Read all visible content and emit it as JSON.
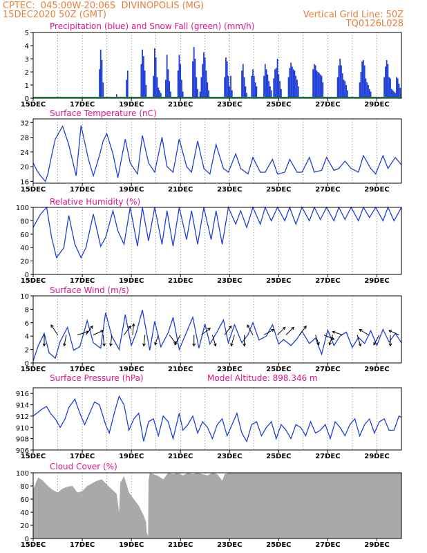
{
  "header": {
    "line1_left": "CPTEC:  045:00W-20:06S  DIVINOPOLIS (MG)",
    "line2_left": "15DEC2020 50Z (GMT)",
    "line2_right": "Vertical Grid Line: 50Z",
    "line3_right": "TQ0126L028"
  },
  "colors": {
    "header": "#e8803a",
    "title": "#e0148c",
    "series": "#1f3fd6",
    "snow": "#18a050",
    "cloud": "#a9a9a9"
  },
  "chart_data": [
    {
      "type": "bar",
      "title": "Precipitation (blue) and Snow Fall (green) (mm/h)",
      "x_ticks": [
        "15DEC",
        "17DEC",
        "19DEC",
        "21DEC",
        "23DEC",
        "25DEC",
        "27DEC",
        "29DEC"
      ],
      "xlim_days": [
        15,
        30
      ],
      "ylim": [
        0,
        5
      ],
      "y_ticks": [
        0,
        1,
        2,
        3,
        4,
        5
      ],
      "series": [
        {
          "name": "Precipitation",
          "x_day": [
            17.7,
            17.75,
            17.8,
            17.85,
            18.4,
            18.8,
            18.85,
            19.4,
            19.45,
            19.5,
            19.55,
            19.6,
            19.9,
            19.95,
            20.0,
            20.05,
            20.1,
            20.15,
            20.2,
            20.4,
            20.45,
            20.5,
            20.55,
            20.6,
            20.9,
            20.95,
            21.0,
            21.05,
            21.1,
            21.5,
            21.55,
            21.6,
            21.65,
            21.7,
            21.8,
            21.85,
            21.9,
            21.95,
            22.0,
            22.05,
            22.1,
            22.15,
            22.8,
            22.85,
            22.9,
            22.95,
            23.0,
            23.05,
            23.1,
            23.5,
            23.55,
            23.6,
            23.65,
            23.7,
            23.9,
            23.95,
            24.0,
            24.05,
            24.1,
            24.4,
            24.45,
            24.5,
            24.55,
            24.6,
            24.65,
            24.7,
            24.8,
            24.85,
            24.9,
            24.95,
            25.0,
            25.05,
            25.1,
            25.4,
            25.45,
            25.5,
            25.55,
            25.6,
            25.65,
            25.7,
            25.75,
            25.8,
            26.4,
            26.45,
            26.5,
            26.55,
            26.6,
            26.65,
            26.7,
            26.75,
            26.8,
            27.4,
            27.45,
            27.5,
            27.55,
            27.6,
            27.65,
            27.7,
            27.75,
            27.8,
            28.3,
            28.35,
            28.4,
            28.45,
            28.5,
            28.55,
            28.6,
            28.65,
            28.7,
            28.75,
            29.3,
            29.35,
            29.4,
            29.45,
            29.5,
            29.55,
            29.6,
            29.65,
            29.7,
            29.75,
            29.8,
            29.85,
            29.9,
            29.95
          ],
          "values": [
            2.2,
            3.7,
            2.9,
            1.2,
            0.3,
            1.4,
            2.1,
            2.6,
            3.7,
            3.2,
            2.1,
            1.0,
            1.7,
            3.8,
            3.1,
            1.6,
            0.8,
            0.6,
            0.4,
            1.4,
            3.3,
            2.2,
            1.3,
            0.5,
            2.1,
            3.3,
            2.6,
            1.4,
            0.5,
            2.8,
            3.9,
            3.0,
            1.6,
            0.7,
            0.5,
            1.6,
            2.6,
            3.5,
            3.1,
            2.1,
            1.2,
            0.6,
            1.6,
            3.1,
            2.8,
            1.7,
            0.9,
            1.7,
            0.6,
            2.1,
            2.6,
            1.6,
            0.9,
            0.4,
            1.7,
            2.2,
            1.7,
            1.2,
            0.9,
            1.7,
            2.6,
            2.2,
            1.8,
            1.3,
            0.9,
            0.6,
            1.5,
            2.2,
            2.3,
            3.0,
            1.8,
            1.3,
            0.7,
            1.6,
            2.3,
            2.7,
            2.4,
            2.2,
            2.1,
            1.7,
            1.4,
            0.9,
            2.2,
            2.6,
            2.5,
            2.1,
            2.0,
            1.9,
            1.8,
            1.7,
            1.2,
            1.6,
            2.5,
            3.0,
            2.5,
            1.9,
            1.4,
            1.3,
            1.0,
            0.6,
            1.2,
            2.0,
            2.8,
            2.9,
            2.5,
            1.5,
            1.2,
            1.0,
            0.7,
            0.5,
            1.6,
            2.4,
            2.9,
            2.6,
            1.6,
            1.5,
            0.7,
            0.6,
            0.5,
            0.4,
            1.6,
            1.5,
            1.1,
            0.8
          ]
        },
        {
          "name": "Snow Fall",
          "value": 0
        }
      ]
    },
    {
      "type": "line",
      "title": "Surface Temperature (nC)",
      "x_ticks": [
        "15DEC",
        "17DEC",
        "19DEC",
        "21DEC",
        "23DEC",
        "25DEC",
        "27DEC",
        "29DEC"
      ],
      "xlim_days": [
        15,
        30
      ],
      "ylim": [
        15.5,
        33
      ],
      "y_ticks": [
        16,
        20,
        24,
        28,
        32
      ],
      "x_day": [
        15,
        15.15,
        15.3,
        15.5,
        15.6,
        15.75,
        15.9,
        16.2,
        16.45,
        16.75,
        16.95,
        17.25,
        17.45,
        17.7,
        17.85,
        18.0,
        18.25,
        18.45,
        18.75,
        18.95,
        19.25,
        19.45,
        19.7,
        19.95,
        20.25,
        20.45,
        20.7,
        20.95,
        21.25,
        21.45,
        21.7,
        21.95,
        22.2,
        22.45,
        22.75,
        22.95,
        23.25,
        23.45,
        23.75,
        23.95,
        24.25,
        24.45,
        24.75,
        24.95,
        25.25,
        25.45,
        25.75,
        25.95,
        26.25,
        26.45,
        26.75,
        26.95,
        27.25,
        27.45,
        27.7,
        27.95,
        28.25,
        28.45,
        28.75,
        28.95,
        29.25,
        29.45,
        29.75,
        30.0
      ],
      "values": [
        21.0,
        19.0,
        17.5,
        16.0,
        18.0,
        23.0,
        27.5,
        31.0,
        26.0,
        17.5,
        31.2,
        22.0,
        17.5,
        23.0,
        27.0,
        29.0,
        23.5,
        17.0,
        27.5,
        21.0,
        18.0,
        28.5,
        21.0,
        18.5,
        28.0,
        20.0,
        18.5,
        27.5,
        20.0,
        18.5,
        27.0,
        19.5,
        18.0,
        26.0,
        19.5,
        18.5,
        23.5,
        19.5,
        18.0,
        22.5,
        18.5,
        18.5,
        22.0,
        18.0,
        18.5,
        22.0,
        18.5,
        18.5,
        22.5,
        18.5,
        19.0,
        22.5,
        19.0,
        19.5,
        21.5,
        19.5,
        18.5,
        23.0,
        19.5,
        18.0,
        23.0,
        19.5,
        22.5,
        20.5
      ]
    },
    {
      "type": "line",
      "title": "Relative Humidity (%)",
      "x_ticks": [
        "15DEC",
        "17DEC",
        "19DEC",
        "21DEC",
        "23DEC",
        "25DEC",
        "27DEC",
        "29DEC"
      ],
      "xlim_days": [
        15,
        30
      ],
      "ylim": [
        0,
        100
      ],
      "y_ticks": [
        0,
        20,
        40,
        60,
        80,
        100
      ],
      "x_day": [
        15,
        15.3,
        15.55,
        15.75,
        15.95,
        16.25,
        16.45,
        16.7,
        16.95,
        17.15,
        17.45,
        17.75,
        17.95,
        18.25,
        18.45,
        18.7,
        18.95,
        19.25,
        19.45,
        19.7,
        19.95,
        20.25,
        20.45,
        20.7,
        20.95,
        21.25,
        21.45,
        21.7,
        21.95,
        22.25,
        22.45,
        22.7,
        22.95,
        23.25,
        23.45,
        23.7,
        23.95,
        24.25,
        24.45,
        24.7,
        24.95,
        25.25,
        25.45,
        25.7,
        25.95,
        26.25,
        26.45,
        26.7,
        26.95,
        27.25,
        27.45,
        27.7,
        27.95,
        28.25,
        28.45,
        28.7,
        28.95,
        29.25,
        29.45,
        29.7,
        30.0
      ],
      "values": [
        70,
        90,
        100,
        55,
        25,
        40,
        88,
        45,
        25,
        40,
        90,
        42,
        55,
        95,
        65,
        45,
        100,
        42,
        100,
        50,
        100,
        45,
        95,
        42,
        100,
        52,
        95,
        45,
        100,
        52,
        95,
        45,
        100,
        75,
        95,
        70,
        100,
        75,
        100,
        80,
        100,
        80,
        100,
        75,
        100,
        80,
        100,
        82,
        100,
        80,
        100,
        82,
        100,
        80,
        100,
        85,
        100,
        80,
        100,
        80,
        100
      ]
    },
    {
      "type": "line",
      "title": "Surface Wind (m/s)",
      "x_ticks": [
        "15DEC",
        "17DEC",
        "19DEC",
        "21DEC",
        "23DEC",
        "25DEC",
        "27DEC",
        "29DEC"
      ],
      "xlim_days": [
        15,
        30
      ],
      "ylim": [
        0,
        10
      ],
      "y_ticks": [
        0,
        2,
        4,
        6,
        8,
        10
      ],
      "x_day": [
        15,
        15.2,
        15.45,
        15.65,
        15.9,
        16.1,
        16.4,
        16.65,
        16.9,
        17.2,
        17.45,
        17.75,
        17.95,
        18.2,
        18.5,
        18.75,
        19.0,
        19.2,
        19.45,
        19.75,
        19.95,
        20.2,
        20.5,
        20.7,
        20.95,
        21.25,
        21.5,
        21.75,
        22.0,
        22.2,
        22.5,
        22.75,
        22.95,
        23.2,
        23.5,
        23.75,
        23.95,
        24.2,
        24.5,
        24.75,
        25.0,
        25.2,
        25.5,
        25.75,
        25.95,
        26.25,
        26.5,
        26.75,
        27.0,
        27.25,
        27.5,
        27.75,
        28.0,
        28.25,
        28.5,
        28.75,
        29.0,
        29.25,
        29.5,
        29.75,
        30.0
      ],
      "values": [
        0.3,
        2.5,
        4.4,
        1.5,
        0.7,
        3.2,
        5.3,
        1.9,
        2.4,
        6.3,
        3.0,
        2.2,
        7.5,
        4.0,
        2.0,
        7.2,
        2.6,
        4.5,
        7.9,
        1.9,
        6.2,
        2.4,
        4.5,
        6.8,
        2.0,
        4.6,
        6.8,
        2.2,
        5.8,
        2.8,
        4.7,
        6.4,
        3.0,
        5.7,
        3.0,
        4.2,
        6.0,
        3.4,
        4.0,
        5.7,
        2.8,
        3.5,
        2.6,
        3.6,
        4.7,
        2.9,
        3.7,
        1.3,
        4.9,
        2.6,
        4.0,
        4.6,
        2.3,
        3.8,
        2.9,
        4.8,
        2.6,
        5.0,
        3.1,
        4.4,
        3.0
      ],
      "vectors": [
        {
          "x_day": 15.45,
          "u": 0.0,
          "v": -1.0
        },
        {
          "x_day": 16.0,
          "u": -0.6,
          "v": 0.9
        },
        {
          "x_day": 16.35,
          "u": -0.2,
          "v": -1.0
        },
        {
          "x_day": 16.8,
          "u": 1.0,
          "v": 0.3
        },
        {
          "x_day": 17.15,
          "u": 0.6,
          "v": 0.8
        },
        {
          "x_day": 17.45,
          "u": 0.9,
          "v": 0.4
        },
        {
          "x_day": 17.85,
          "u": 0.1,
          "v": -1.0
        },
        {
          "x_day": 18.2,
          "u": -0.1,
          "v": -1.0
        },
        {
          "x_day": 18.7,
          "u": 0.6,
          "v": 0.8
        },
        {
          "x_day": 19.05,
          "u": 0.1,
          "v": 1.0
        },
        {
          "x_day": 19.55,
          "u": -0.1,
          "v": -1.0
        },
        {
          "x_day": 20.1,
          "u": -0.3,
          "v": -0.9
        },
        {
          "x_day": 20.55,
          "u": 0.6,
          "v": -0.8
        },
        {
          "x_day": 21.0,
          "u": -0.5,
          "v": -0.9
        },
        {
          "x_day": 21.55,
          "u": 0.0,
          "v": -1.0
        },
        {
          "x_day": 21.85,
          "u": 0.8,
          "v": 0.6
        },
        {
          "x_day": 22.3,
          "u": 0.3,
          "v": -1.0
        },
        {
          "x_day": 22.8,
          "u": 0.6,
          "v": 0.8
        },
        {
          "x_day": 23.2,
          "u": -0.3,
          "v": -1.0
        },
        {
          "x_day": 23.6,
          "u": 0.0,
          "v": -1.0
        },
        {
          "x_day": 23.95,
          "u": -0.5,
          "v": 0.9
        },
        {
          "x_day": 24.4,
          "u": 0.9,
          "v": 0.5
        },
        {
          "x_day": 24.95,
          "u": 0.7,
          "v": 0.7
        },
        {
          "x_day": 25.3,
          "u": 0.7,
          "v": 0.7
        },
        {
          "x_day": 25.85,
          "u": 0.6,
          "v": 0.8
        },
        {
          "x_day": 26.5,
          "u": 0.3,
          "v": -0.9
        },
        {
          "x_day": 26.85,
          "u": 0.9,
          "v": -0.4
        },
        {
          "x_day": 27.2,
          "u": -0.3,
          "v": -0.9
        },
        {
          "x_day": 27.6,
          "u": -0.9,
          "v": 0.3
        },
        {
          "x_day": 28.2,
          "u": 0.3,
          "v": -1.0
        },
        {
          "x_day": 28.65,
          "u": -0.8,
          "v": 0.5
        },
        {
          "x_day": 29.1,
          "u": -0.5,
          "v": -0.9
        },
        {
          "x_day": 29.55,
          "u": 0.0,
          "v": -1.0
        },
        {
          "x_day": 29.9,
          "u": -0.9,
          "v": 0.4
        }
      ]
    },
    {
      "type": "line",
      "title": "Surface Pressure (hPa)",
      "annotation": "Model Altitude: 898.346 m",
      "x_ticks": [
        "15DEC",
        "17DEC",
        "19DEC",
        "21DEC",
        "23DEC",
        "25DEC",
        "27DEC",
        "29DEC"
      ],
      "xlim_days": [
        15,
        30
      ],
      "ylim": [
        906,
        917
      ],
      "y_ticks": [
        906,
        908,
        910,
        912,
        914,
        916
      ],
      "x_day": [
        15,
        15.15,
        15.35,
        15.55,
        15.7,
        15.9,
        16.1,
        16.3,
        16.45,
        16.7,
        16.9,
        17.1,
        17.3,
        17.5,
        17.7,
        17.95,
        18.1,
        18.3,
        18.5,
        18.7,
        18.9,
        19.1,
        19.3,
        19.5,
        19.7,
        19.9,
        20.1,
        20.3,
        20.5,
        20.7,
        20.95,
        21.1,
        21.3,
        21.5,
        21.7,
        21.9,
        22.1,
        22.3,
        22.5,
        22.7,
        22.9,
        23.1,
        23.3,
        23.5,
        23.7,
        23.9,
        24.1,
        24.3,
        24.5,
        24.7,
        24.9,
        25.1,
        25.3,
        25.5,
        25.7,
        25.9,
        26.1,
        26.3,
        26.5,
        26.7,
        26.9,
        27.1,
        27.3,
        27.5,
        27.7,
        27.9,
        28.1,
        28.3,
        28.5,
        28.7,
        28.9,
        29.1,
        29.3,
        29.5,
        29.7,
        29.9,
        30.0
      ],
      "values": [
        912.0,
        912.5,
        913.2,
        913.7,
        912.5,
        911.5,
        910.0,
        911.5,
        913.5,
        915.0,
        912.5,
        910.5,
        912.5,
        914.5,
        914.0,
        910.5,
        909.0,
        912.5,
        915.5,
        914.0,
        909.5,
        911.5,
        912.5,
        907.5,
        911.0,
        911.5,
        908.5,
        912.0,
        911.0,
        908.0,
        912.5,
        909.5,
        910.5,
        912.0,
        909.0,
        911.0,
        910.0,
        908.0,
        910.5,
        911.5,
        908.5,
        910.5,
        912.5,
        909.0,
        907.5,
        910.5,
        911.0,
        908.5,
        910.0,
        911.0,
        908.0,
        910.5,
        909.5,
        908.0,
        910.5,
        910.0,
        908.5,
        911.0,
        909.0,
        909.5,
        910.5,
        908.0,
        911.0,
        910.0,
        908.5,
        910.5,
        911.5,
        908.5,
        910.5,
        911.5,
        909.0,
        911.0,
        911.5,
        909.5,
        909.5,
        912.0,
        911.8
      ]
    },
    {
      "type": "area",
      "title": "Cloud Cover (%)",
      "x_ticks": [
        "15DEC",
        "17DEC",
        "19DEC",
        "21DEC",
        "23DEC",
        "25DEC",
        "27DEC",
        "29DEC"
      ],
      "xlim_days": [
        15,
        30
      ],
      "ylim": [
        0,
        100
      ],
      "y_ticks": [
        0,
        20,
        40,
        60,
        80,
        100
      ],
      "x_day": [
        15,
        15.2,
        15.4,
        15.6,
        15.8,
        16.0,
        16.2,
        16.4,
        16.6,
        16.8,
        17.0,
        17.2,
        17.4,
        17.6,
        17.8,
        18.0,
        18.2,
        18.4,
        18.5,
        18.55,
        18.7,
        18.9,
        19.1,
        19.3,
        19.5,
        19.6,
        19.62,
        19.68,
        19.7,
        19.75,
        19.9,
        20.1,
        20.3,
        20.5,
        20.7,
        20.9,
        21.1,
        21.3,
        21.5,
        21.7,
        21.9,
        22.1,
        22.3,
        22.5,
        22.7,
        22.8,
        23.0,
        23.2,
        23.5,
        24.0,
        25.0,
        26.0,
        27.0,
        28.0,
        29.0,
        30.0
      ],
      "values": [
        75,
        93,
        88,
        80,
        74,
        70,
        76,
        79,
        80,
        70,
        72,
        80,
        84,
        88,
        90,
        82,
        75,
        68,
        40,
        85,
        95,
        70,
        60,
        50,
        35,
        25,
        10,
        3,
        88,
        100,
        98,
        95,
        90,
        100,
        98,
        100,
        96,
        100,
        98,
        100,
        98,
        96,
        100,
        98,
        88,
        98,
        100,
        100,
        100,
        100,
        100,
        100,
        100,
        100,
        100,
        100
      ]
    }
  ]
}
